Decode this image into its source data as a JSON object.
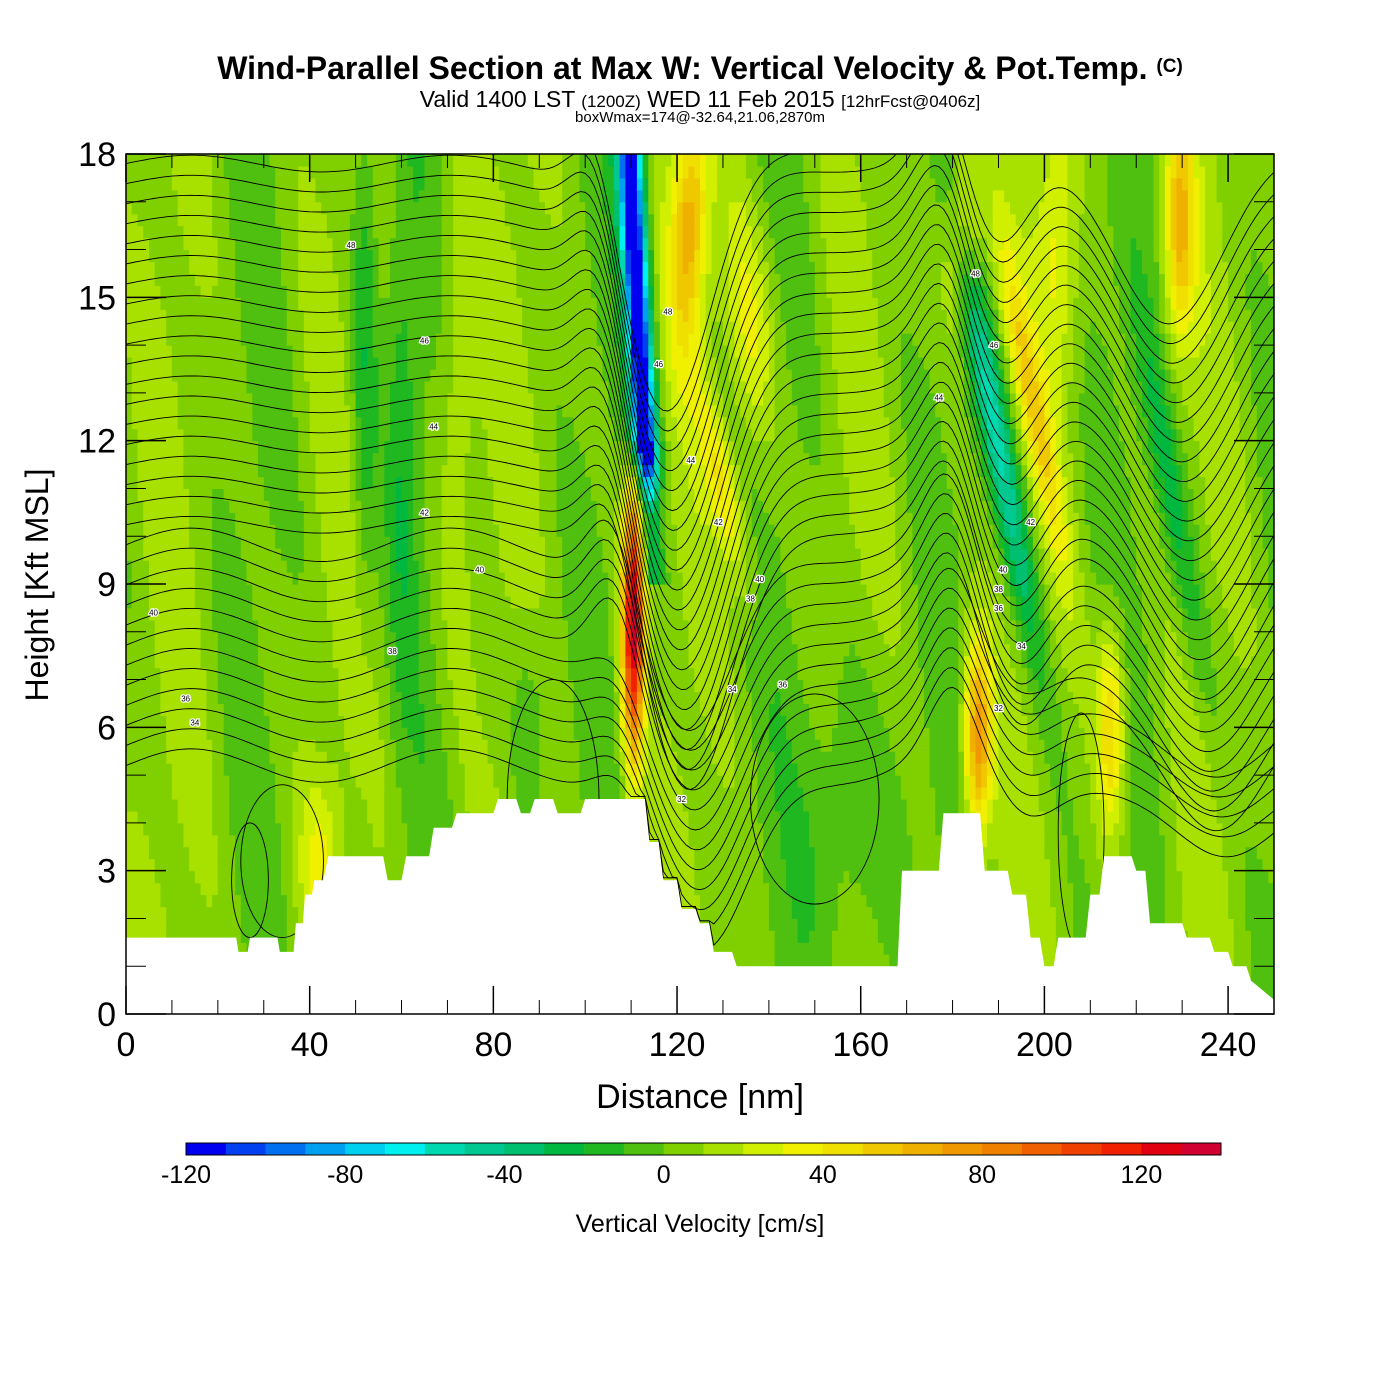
{
  "header": {
    "title": "Wind-Parallel Section at Max W: Vertical Velocity & Pot.Temp.",
    "copyright": "(C)",
    "valid_prefix": "Valid 1400 LST",
    "valid_utc": "(1200Z)",
    "valid_date": "WED 11 Feb 2015",
    "forecast": "[12hrFcst@0406z]",
    "box_wmax": "boxWmax=174@-32.64,21.06,2870m"
  },
  "chart_data": {
    "type": "heatmap",
    "title": "Wind-Parallel Section at Max W: Vertical Velocity & Pot.Temp.",
    "xlabel": "Distance [nm]",
    "ylabel": "Height [Kft MSL]",
    "xlim": [
      0,
      250
    ],
    "ylim": [
      0,
      18
    ],
    "x_ticks": [
      0,
      40,
      80,
      120,
      160,
      200,
      240
    ],
    "y_ticks": [
      0,
      3,
      6,
      9,
      12,
      15,
      18
    ],
    "colorbar": {
      "label": "Vertical Velocity [cm/s]",
      "min": -120,
      "max": 140,
      "step": 10,
      "ticks": [
        -120,
        -80,
        -40,
        0,
        40,
        80,
        120
      ],
      "colors": [
        "#0000f0",
        "#0040f0",
        "#0070f0",
        "#00a0f0",
        "#00d0f0",
        "#00f0f0",
        "#00d8b0",
        "#00c890",
        "#00c070",
        "#00b840",
        "#20b820",
        "#50c010",
        "#80d000",
        "#a8e000",
        "#d0f000",
        "#f0f000",
        "#f0e000",
        "#f0c800",
        "#f0b000",
        "#f09800",
        "#f08000",
        "#f06000",
        "#f04000",
        "#f02000",
        "#e00010",
        "#d00030"
      ]
    },
    "vertical_velocity_features": [
      {
        "name": "downdraft",
        "x_center": 113,
        "height_range_kft": [
          11,
          18
        ],
        "min_cm_s": -120
      },
      {
        "name": "updraft",
        "x_center": 110,
        "height_range_kft": [
          4.5,
          11
        ],
        "max_cm_s": 120
      },
      {
        "name": "updraft",
        "x_center": 123,
        "height_range_kft": [
          14,
          18
        ],
        "max_cm_s": 60
      },
      {
        "name": "updraft",
        "x_center": 186,
        "height_range_kft": [
          4,
          7
        ],
        "max_cm_s": 80
      },
      {
        "name": "updraft",
        "x_center": 229,
        "height_range_kft": [
          14,
          18
        ],
        "max_cm_s": 60
      },
      {
        "name": "updraft",
        "x_center": 214,
        "height_range_kft": [
          4,
          7
        ],
        "max_cm_s": 50
      },
      {
        "name": "downdraft",
        "x_center": 190,
        "height_range_kft": [
          8,
          14
        ],
        "min_cm_s": -50
      }
    ],
    "terrain": {
      "x": [
        0,
        24,
        24.5,
        26.5,
        27,
        33,
        33.5,
        36.5,
        37,
        38.5,
        39,
        40.5,
        41,
        43,
        44,
        56,
        57,
        60,
        61,
        66,
        67,
        71,
        72,
        80,
        81,
        85,
        86,
        88,
        89,
        93,
        94,
        99,
        100,
        104,
        105,
        113,
        114,
        116,
        117,
        120,
        121,
        124,
        125,
        127,
        128,
        132,
        133,
        155,
        156,
        168,
        169,
        177,
        178,
        186,
        187,
        192,
        193,
        196,
        197,
        199,
        200,
        202,
        203,
        209,
        210,
        212,
        213,
        219,
        220,
        222,
        223,
        230,
        231,
        236,
        237,
        240,
        241,
        244,
        245,
        250
      ],
      "height_kft": [
        1.6,
        1.6,
        1.3,
        1.3,
        1.6,
        1.6,
        1.3,
        1.3,
        1.9,
        1.9,
        2.5,
        2.5,
        2.8,
        2.8,
        3.3,
        3.3,
        2.8,
        2.8,
        3.3,
        3.3,
        3.9,
        3.9,
        4.2,
        4.2,
        4.5,
        4.5,
        4.2,
        4.2,
        4.5,
        4.5,
        4.2,
        4.2,
        4.5,
        4.5,
        4.5,
        4.5,
        3.6,
        3.6,
        2.8,
        2.8,
        2.2,
        2.2,
        1.9,
        1.9,
        1.3,
        1.3,
        1.0,
        1.0,
        1.0,
        1.0,
        3.0,
        3.0,
        4.2,
        4.2,
        3.0,
        3.0,
        2.5,
        2.5,
        1.6,
        1.6,
        1.0,
        1.0,
        1.6,
        1.6,
        2.5,
        2.5,
        3.3,
        3.3,
        3.0,
        3.0,
        1.9,
        1.9,
        1.6,
        1.6,
        1.3,
        1.3,
        1.0,
        1.0,
        0.7,
        0.3
      ]
    },
    "potential_temperature_labels": [
      {
        "x": 6,
        "y": 8.4,
        "text": "40"
      },
      {
        "x": 13,
        "y": 6.6,
        "text": "36"
      },
      {
        "x": 15,
        "y": 6.1,
        "text": "34"
      },
      {
        "x": 49,
        "y": 16.1,
        "text": "48"
      },
      {
        "x": 58,
        "y": 7.6,
        "text": "38"
      },
      {
        "x": 65,
        "y": 14.1,
        "text": "46"
      },
      {
        "x": 67,
        "y": 12.3,
        "text": "44"
      },
      {
        "x": 65,
        "y": 10.5,
        "text": "42"
      },
      {
        "x": 77,
        "y": 9.3,
        "text": "40"
      },
      {
        "x": 118,
        "y": 14.7,
        "text": "48"
      },
      {
        "x": 116,
        "y": 13.6,
        "text": "46"
      },
      {
        "x": 123,
        "y": 11.6,
        "text": "44"
      },
      {
        "x": 129,
        "y": 10.3,
        "text": "42"
      },
      {
        "x": 138,
        "y": 9.1,
        "text": "40"
      },
      {
        "x": 136,
        "y": 8.7,
        "text": "38"
      },
      {
        "x": 132,
        "y": 6.8,
        "text": "34"
      },
      {
        "x": 143,
        "y": 6.9,
        "text": "36"
      },
      {
        "x": 121,
        "y": 4.5,
        "text": "32"
      },
      {
        "x": 177,
        "y": 12.9,
        "text": "44"
      },
      {
        "x": 185,
        "y": 15.5,
        "text": "48"
      },
      {
        "x": 189,
        "y": 14.0,
        "text": "46"
      },
      {
        "x": 197,
        "y": 10.3,
        "text": "42"
      },
      {
        "x": 191,
        "y": 9.3,
        "text": "40"
      },
      {
        "x": 190,
        "y": 8.9,
        "text": "38"
      },
      {
        "x": 190,
        "y": 8.5,
        "text": "36"
      },
      {
        "x": 195,
        "y": 7.7,
        "text": "34"
      },
      {
        "x": 190,
        "y": 6.4,
        "text": "32"
      }
    ]
  }
}
